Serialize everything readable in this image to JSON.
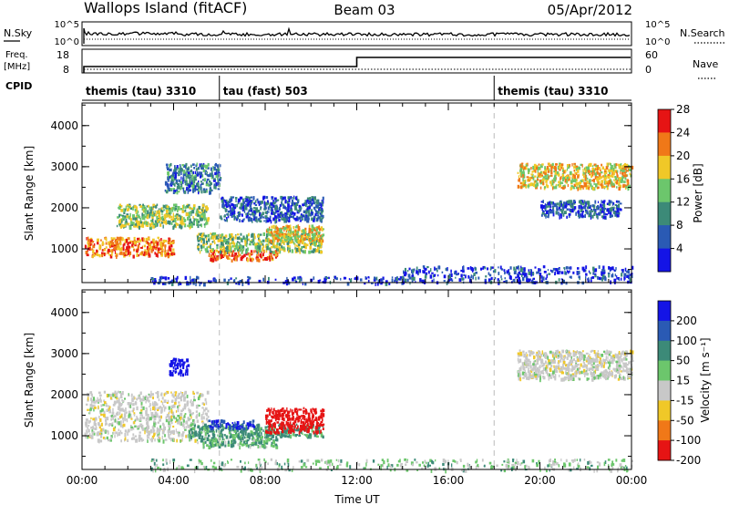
{
  "header": {
    "station": "Wallops Island (fitACF)",
    "beam": "Beam 03",
    "date": "05/Apr/2012"
  },
  "noise_panel": {
    "left_label": "N.Sky",
    "left_ticks": [
      "10^5",
      "10^0"
    ],
    "right_label": "N.Search",
    "right_ticks": [
      "10^5",
      "10^0"
    ]
  },
  "freq_panel": {
    "left_label_1": "Freq.",
    "left_label_2": "[MHz]",
    "left_ticks": [
      "18",
      "8"
    ],
    "right_label": "Nave",
    "right_ticks": [
      "60",
      "0"
    ]
  },
  "cpid_panel": {
    "label": "CPID",
    "segments": [
      {
        "label": "themis (tau) 3310",
        "start_hour": 0
      },
      {
        "label": "tau (fast) 503",
        "start_hour": 6
      },
      {
        "label": "themis (tau) 3310",
        "start_hour": 18
      }
    ]
  },
  "chart_data": [
    {
      "type": "heatmap",
      "title": "",
      "xlabel": "Time UT",
      "ylabel": "Slant Range [km]",
      "xlim": [
        0,
        24
      ],
      "ylim": [
        180,
        4550
      ],
      "x_ticks": [
        "00:00",
        "04:00",
        "08:00",
        "12:00",
        "16:00",
        "20:00",
        "00:00"
      ],
      "y_ticks": [
        1000,
        2000,
        3000,
        4000
      ],
      "colorbar": {
        "label": "Power [dB]",
        "ticks": [
          "4",
          "8",
          "12",
          "16",
          "20",
          "24",
          "28"
        ],
        "colors": [
          "#1414e6",
          "#2a5ab4",
          "#3c8a78",
          "#6cc66c",
          "#f0c828",
          "#f07818",
          "#e61414"
        ]
      },
      "regions": [
        {
          "t0": 0.1,
          "t1": 4.0,
          "r0": 850,
          "r1": 1300,
          "value": 24
        },
        {
          "t0": 1.5,
          "t1": 5.5,
          "r0": 1550,
          "r1": 2100,
          "value": 16
        },
        {
          "t0": 3.6,
          "t1": 6.0,
          "r0": 2400,
          "r1": 3100,
          "value": 10
        },
        {
          "t0": 5.5,
          "t1": 8.5,
          "r0": 750,
          "r1": 1000,
          "value": 26
        },
        {
          "t0": 5.0,
          "t1": 10.5,
          "r0": 950,
          "r1": 1400,
          "value": 16
        },
        {
          "t0": 6.0,
          "t1": 10.5,
          "r0": 1700,
          "r1": 2300,
          "value": 8
        },
        {
          "t0": 8.0,
          "t1": 10.5,
          "r0": 1200,
          "r1": 1600,
          "value": 20
        },
        {
          "t0": 19.0,
          "t1": 24.0,
          "r0": 2500,
          "r1": 3100,
          "value": 20
        },
        {
          "t0": 20.0,
          "t1": 23.5,
          "r0": 1800,
          "r1": 2200,
          "value": 8
        },
        {
          "t0": 3.0,
          "t1": 14.0,
          "r0": 180,
          "r1": 350,
          "value": 6
        },
        {
          "t0": 14.0,
          "t1": 24.0,
          "r0": 200,
          "r1": 600,
          "value": 6
        }
      ]
    },
    {
      "type": "heatmap",
      "title": "",
      "xlabel": "Time UT",
      "ylabel": "Slant Range [km]",
      "xlim": [
        0,
        24
      ],
      "ylim": [
        180,
        4550
      ],
      "x_ticks": [
        "00:00",
        "04:00",
        "08:00",
        "12:00",
        "16:00",
        "20:00",
        "00:00"
      ],
      "y_ticks": [
        1000,
        2000,
        3000,
        4000
      ],
      "colorbar": {
        "label": "Velocity [m s⁻¹]",
        "ticks": [
          "200",
          "100",
          "50",
          "15",
          "-15",
          "-50",
          "-100",
          "-200"
        ],
        "colors": [
          "#1414e6",
          "#2a5ab4",
          "#3c8a78",
          "#6cc66c",
          "#c8c8c8",
          "#f0c828",
          "#f07818",
          "#e61414"
        ]
      },
      "regions": [
        {
          "t0": 0.1,
          "t1": 5.5,
          "r0": 900,
          "r1": 2100,
          "value": 0
        },
        {
          "t0": 3.8,
          "t1": 4.6,
          "r0": 2500,
          "r1": 2900,
          "value": 180
        },
        {
          "t0": 5.0,
          "t1": 8.5,
          "r0": 750,
          "r1": 1000,
          "value": 30
        },
        {
          "t0": 4.5,
          "t1": 10.5,
          "r0": 1000,
          "r1": 1300,
          "value": 40
        },
        {
          "t0": 5.5,
          "t1": 7.5,
          "r0": 1200,
          "r1": 1400,
          "value": 150
        },
        {
          "t0": 8.0,
          "t1": 10.5,
          "r0": 1100,
          "r1": 1700,
          "value": -120
        },
        {
          "t0": 19.0,
          "t1": 24.0,
          "r0": 2400,
          "r1": 3100,
          "value": 0
        },
        {
          "t0": 3.0,
          "t1": 24.0,
          "r0": 180,
          "r1": 450,
          "value": 20
        }
      ]
    }
  ]
}
